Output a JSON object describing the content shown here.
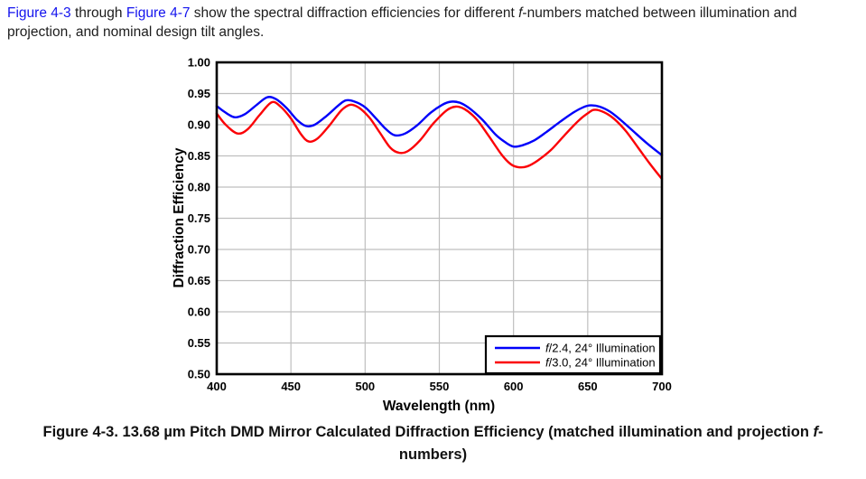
{
  "intro": {
    "segments": [
      {
        "text": "Figure 4-3",
        "style": "link"
      },
      {
        "text": " through ",
        "style": "plain"
      },
      {
        "text": "Figure 4-7",
        "style": "link"
      },
      {
        "text": " show the spectral diffraction efficiencies for different ",
        "style": "plain"
      },
      {
        "text": "f",
        "style": "italic"
      },
      {
        "text": "-numbers matched between illumination and projection, and nominal design tilt angles.",
        "style": "plain"
      }
    ]
  },
  "caption": {
    "segments": [
      {
        "text": "Figure 4-3. 13.68 µm Pitch DMD Mirror Calculated Diffraction Efficiency (matched illumination and projection ",
        "style": "plain"
      },
      {
        "text": "f",
        "style": "italic"
      },
      {
        "text": "-numbers)",
        "style": "plain"
      }
    ]
  },
  "colors": {
    "link_blue": "#1414ee",
    "gridline": "#bfbfbf",
    "frame": "#000000",
    "series_blue": "#0000fa",
    "series_red": "#fb0006"
  },
  "chart_data": {
    "type": "line",
    "title": "",
    "xlabel": "Wavelength (nm)",
    "ylabel": "Diffraction Efficiency",
    "xlim": [
      400,
      700
    ],
    "ylim": [
      0.5,
      1.0
    ],
    "xticks": [
      "400",
      "450",
      "500",
      "550",
      "600",
      "650",
      "700"
    ],
    "yticks": [
      "0.50",
      "0.55",
      "0.60",
      "0.65",
      "0.70",
      "0.75",
      "0.80",
      "0.85",
      "0.90",
      "0.95",
      "1.00"
    ],
    "grid": true,
    "legend_position": "bottom-right",
    "series": [
      {
        "label_italic": "f",
        "label_rest": "/2.4, 24° Illumination",
        "color": "#0000fa",
        "points": [
          [
            400,
            0.93
          ],
          [
            405,
            0.921
          ],
          [
            412,
            0.912
          ],
          [
            419,
            0.917
          ],
          [
            427,
            0.932
          ],
          [
            434,
            0.944
          ],
          [
            440,
            0.941
          ],
          [
            447,
            0.927
          ],
          [
            454,
            0.908
          ],
          [
            460,
            0.898
          ],
          [
            466,
            0.9
          ],
          [
            474,
            0.914
          ],
          [
            482,
            0.931
          ],
          [
            487,
            0.939
          ],
          [
            493,
            0.937
          ],
          [
            500,
            0.928
          ],
          [
            507,
            0.911
          ],
          [
            514,
            0.893
          ],
          [
            520,
            0.883
          ],
          [
            527,
            0.886
          ],
          [
            535,
            0.899
          ],
          [
            544,
            0.919
          ],
          [
            552,
            0.932
          ],
          [
            558,
            0.937
          ],
          [
            564,
            0.935
          ],
          [
            571,
            0.925
          ],
          [
            579,
            0.908
          ],
          [
            588,
            0.884
          ],
          [
            595,
            0.871
          ],
          [
            600,
            0.865
          ],
          [
            606,
            0.867
          ],
          [
            614,
            0.875
          ],
          [
            622,
            0.888
          ],
          [
            631,
            0.904
          ],
          [
            640,
            0.919
          ],
          [
            647,
            0.928
          ],
          [
            652,
            0.931
          ],
          [
            658,
            0.929
          ],
          [
            665,
            0.921
          ],
          [
            672,
            0.908
          ],
          [
            681,
            0.889
          ],
          [
            690,
            0.87
          ],
          [
            700,
            0.851
          ]
        ]
      },
      {
        "label_italic": "f",
        "label_rest": "/3.0, 24° Illumination",
        "color": "#fb0006",
        "points": [
          [
            400,
            0.918
          ],
          [
            406,
            0.9
          ],
          [
            414,
            0.886
          ],
          [
            421,
            0.893
          ],
          [
            429,
            0.916
          ],
          [
            437,
            0.936
          ],
          [
            443,
            0.929
          ],
          [
            450,
            0.91
          ],
          [
            457,
            0.884
          ],
          [
            462,
            0.873
          ],
          [
            468,
            0.878
          ],
          [
            476,
            0.899
          ],
          [
            484,
            0.923
          ],
          [
            490,
            0.932
          ],
          [
            496,
            0.927
          ],
          [
            503,
            0.911
          ],
          [
            510,
            0.887
          ],
          [
            517,
            0.863
          ],
          [
            523,
            0.855
          ],
          [
            529,
            0.858
          ],
          [
            537,
            0.875
          ],
          [
            546,
            0.902
          ],
          [
            555,
            0.923
          ],
          [
            561,
            0.929
          ],
          [
            567,
            0.925
          ],
          [
            575,
            0.909
          ],
          [
            583,
            0.883
          ],
          [
            592,
            0.852
          ],
          [
            598,
            0.837
          ],
          [
            603,
            0.832
          ],
          [
            609,
            0.833
          ],
          [
            616,
            0.842
          ],
          [
            625,
            0.859
          ],
          [
            634,
            0.882
          ],
          [
            644,
            0.907
          ],
          [
            651,
            0.92
          ],
          [
            655,
            0.924
          ],
          [
            661,
            0.92
          ],
          [
            668,
            0.909
          ],
          [
            676,
            0.889
          ],
          [
            684,
            0.863
          ],
          [
            692,
            0.837
          ],
          [
            700,
            0.813
          ]
        ]
      }
    ]
  }
}
